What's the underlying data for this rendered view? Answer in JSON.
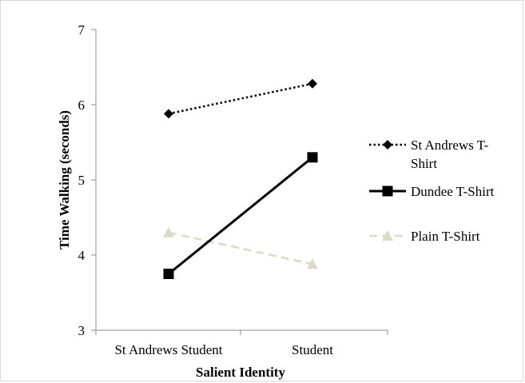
{
  "chart_data": {
    "type": "line",
    "title": "",
    "xlabel": "Salient Identity",
    "ylabel": "Time Walking (seconds)",
    "categories": [
      "St Andrews Student",
      "Student"
    ],
    "ylim": [
      3,
      7
    ],
    "yticks": [
      3,
      4,
      5,
      6,
      7
    ],
    "grid": false,
    "legend_position": "right",
    "series": [
      {
        "name": "St Andrews T-Shirt",
        "legend_lines": [
          "St Andrews T-",
          "Shirt"
        ],
        "values": [
          5.88,
          6.28
        ],
        "color": "#000000",
        "line_style": "dotted",
        "marker": "diamond"
      },
      {
        "name": "Dundee T-Shirt",
        "legend_lines": [
          "Dundee T-Shirt"
        ],
        "values": [
          3.75,
          5.3
        ],
        "color": "#000000",
        "line_style": "solid",
        "marker": "square"
      },
      {
        "name": "Plain T-Shirt",
        "legend_lines": [
          "Plain T-Shirt"
        ],
        "values": [
          4.3,
          3.88
        ],
        "color": "#ddd9c4",
        "line_style": "dashed",
        "marker": "triangle"
      }
    ]
  }
}
